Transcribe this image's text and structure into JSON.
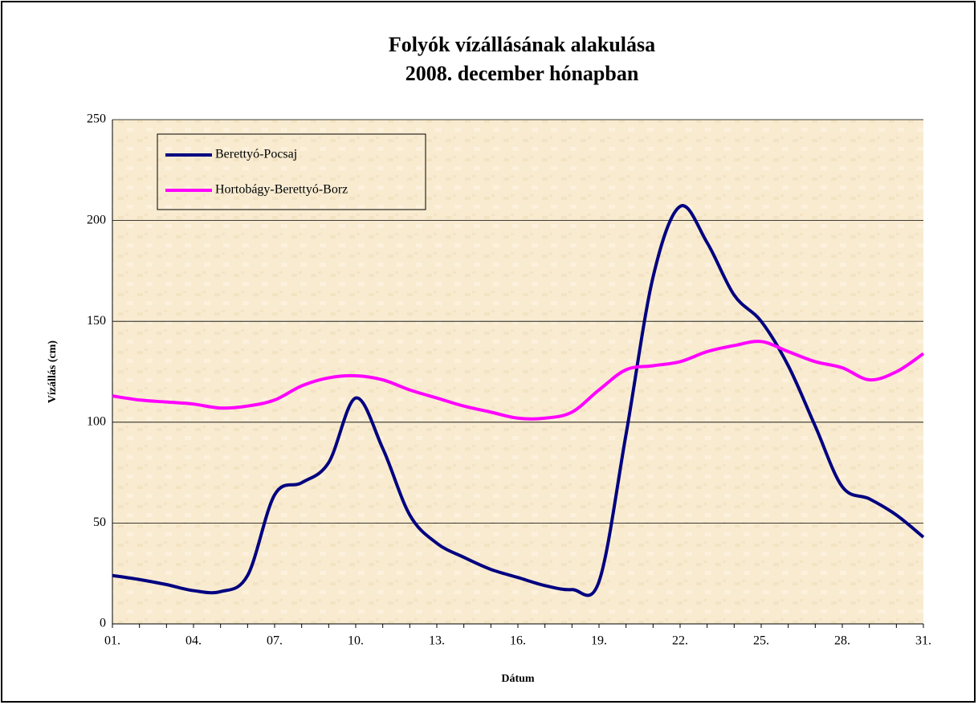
{
  "chart_data": {
    "type": "line",
    "title": "Folyók vízállásának alakulása",
    "subtitle": "2008. december hónapban",
    "x_label": "Dátum",
    "y_label": "Vízállás (cm)",
    "categories": [
      "01.",
      null,
      null,
      "04.",
      null,
      null,
      "07.",
      null,
      null,
      "10.",
      null,
      null,
      "13.",
      null,
      null,
      "16.",
      null,
      null,
      "19.",
      null,
      null,
      "22.",
      null,
      null,
      "25.",
      null,
      null,
      "28.",
      null,
      null,
      "31."
    ],
    "series": [
      {
        "name": "Berettyó-Pocsaj",
        "color": "#000080",
        "values": [
          24,
          22,
          19.5,
          16.5,
          16,
          24,
          64,
          70,
          80,
          112,
          87,
          54,
          40,
          33,
          27,
          23,
          19,
          17,
          21,
          94,
          172,
          207,
          189,
          163,
          150,
          128,
          98,
          68,
          62,
          54,
          43
        ]
      },
      {
        "name": "Hortobágy-Berettyó-Borz",
        "color": "#ff00ff",
        "values": [
          113,
          111,
          110,
          109,
          107,
          108,
          111,
          118,
          122,
          123,
          121,
          116,
          112,
          108,
          105,
          102,
          102,
          105,
          116,
          126,
          128,
          130,
          135,
          138,
          140,
          135,
          130,
          127,
          121,
          125,
          134
        ]
      }
    ],
    "ylim": [
      0,
      250
    ],
    "yticks": [
      0,
      50,
      100,
      150,
      200,
      250
    ],
    "grid": true,
    "legend": "top-left"
  }
}
